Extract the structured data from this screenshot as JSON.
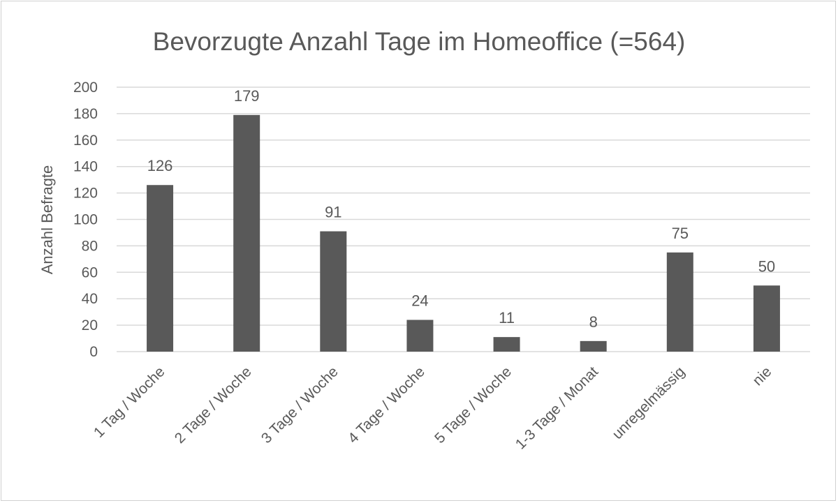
{
  "chart_data": {
    "type": "bar",
    "title": "Bevorzugte Anzahl Tage im Homeoffice (=564)",
    "xlabel": "",
    "ylabel": "Anzahl Befragte",
    "categories": [
      "1 Tag / Woche",
      "2 Tage / Woche",
      "3 Tage / Woche",
      "4 Tage / Woche",
      "5 Tage / Woche",
      "1-3 Tage / Monat",
      "unregelmässig",
      "nie"
    ],
    "values": [
      126,
      179,
      91,
      24,
      11,
      8,
      75,
      50
    ],
    "ylim": [
      0,
      200
    ],
    "yticks": [
      0,
      20,
      40,
      60,
      80,
      100,
      120,
      140,
      160,
      180,
      200
    ],
    "grid": true,
    "data_labels": true,
    "colors": {
      "bar": "#595959",
      "grid": "#d9d9d9",
      "text": "#595959"
    }
  }
}
